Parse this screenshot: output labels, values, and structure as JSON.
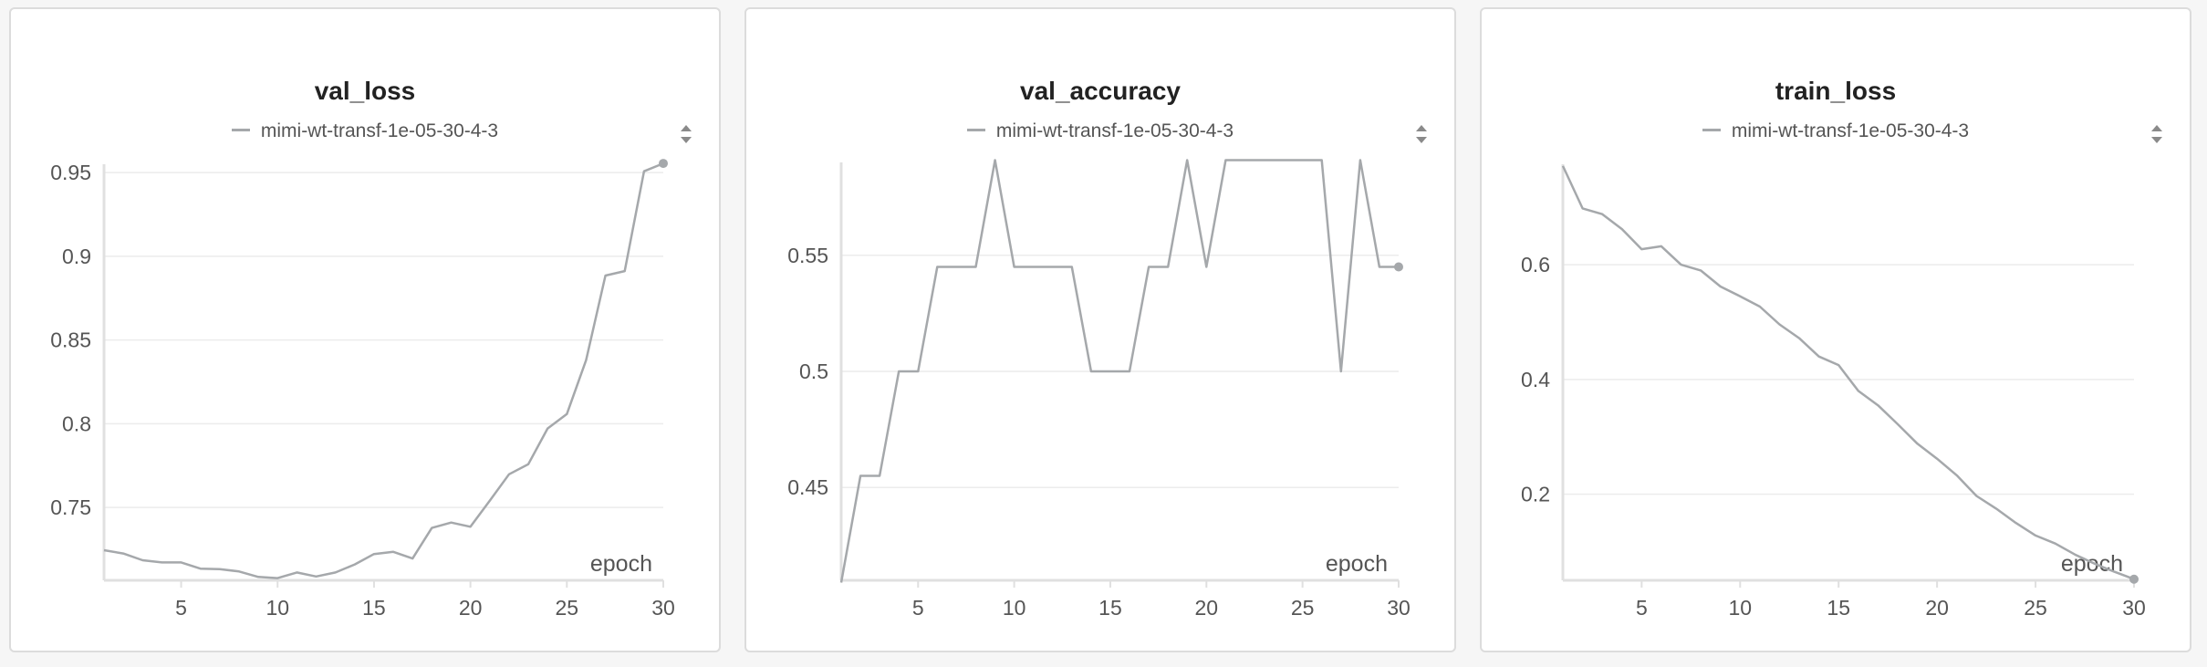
{
  "colors": {
    "line": "#a5a8ab",
    "grid": "#ececec",
    "axis": "#e0e0e0",
    "text": "#555555",
    "title": "#222222"
  },
  "panels": [
    {
      "title": "val_loss",
      "legend": "mimi-wt-transf-1e-05-30-4-3",
      "xlabel": "epoch"
    },
    {
      "title": "val_accuracy",
      "legend": "mimi-wt-transf-1e-05-30-4-3",
      "xlabel": "epoch"
    },
    {
      "title": "train_loss",
      "legend": "mimi-wt-transf-1e-05-30-4-3",
      "xlabel": "epoch"
    }
  ],
  "chart_data": [
    {
      "type": "line",
      "title": "val_loss",
      "xlabel": "epoch",
      "ylabel": "",
      "xlim": [
        1,
        30
      ],
      "ylim": [
        0.7065,
        0.955
      ],
      "xticks": [
        5,
        10,
        15,
        20,
        25,
        30
      ],
      "yticks": [
        0.75,
        0.8,
        0.85,
        0.9,
        0.95
      ],
      "ytick_labels": [
        "0.75",
        "0.8",
        "0.85",
        "0.9",
        "0.95"
      ],
      "grid": true,
      "legend_position": "top",
      "series": [
        {
          "name": "mimi-wt-transf-1e-05-30-4-3",
          "x": [
            1,
            2,
            3,
            4,
            5,
            6,
            7,
            8,
            9,
            10,
            11,
            12,
            13,
            14,
            15,
            16,
            17,
            18,
            19,
            20,
            21,
            22,
            23,
            24,
            25,
            26,
            27,
            28,
            29,
            30
          ],
          "y": [
            0.7245,
            0.7225,
            0.7185,
            0.7172,
            0.7172,
            0.7135,
            0.7132,
            0.7118,
            0.7085,
            0.7078,
            0.7112,
            0.7088,
            0.7112,
            0.716,
            0.7222,
            0.7235,
            0.7195,
            0.7378,
            0.741,
            0.7385,
            0.754,
            0.7698,
            0.7758,
            0.7972,
            0.8058,
            0.838,
            0.8885,
            0.8912,
            0.9508,
            0.9555
          ]
        }
      ]
    },
    {
      "type": "line",
      "title": "val_accuracy",
      "xlabel": "epoch",
      "ylabel": "",
      "xlim": [
        1,
        30
      ],
      "ylim": [
        0.41,
        0.59
      ],
      "xticks": [
        5,
        10,
        15,
        20,
        25,
        30
      ],
      "yticks": [
        0.45,
        0.5,
        0.55
      ],
      "ytick_labels": [
        "0.45",
        "0.5",
        "0.55"
      ],
      "grid": true,
      "legend_position": "top",
      "series": [
        {
          "name": "mimi-wt-transf-1e-05-30-4-3",
          "x": [
            1,
            2,
            3,
            4,
            5,
            6,
            7,
            8,
            9,
            10,
            11,
            12,
            13,
            14,
            15,
            16,
            17,
            18,
            19,
            20,
            21,
            22,
            23,
            24,
            25,
            26,
            27,
            28,
            29,
            30
          ],
          "y": [
            0.409,
            0.455,
            0.455,
            0.5,
            0.5,
            0.545,
            0.545,
            0.545,
            0.591,
            0.545,
            0.545,
            0.545,
            0.545,
            0.5,
            0.5,
            0.5,
            0.545,
            0.545,
            0.591,
            0.545,
            0.591,
            0.591,
            0.591,
            0.591,
            0.591,
            0.591,
            0.5,
            0.591,
            0.545,
            0.545
          ]
        }
      ]
    },
    {
      "type": "line",
      "title": "train_loss",
      "xlabel": "epoch",
      "ylabel": "",
      "xlim": [
        1,
        30
      ],
      "ylim": [
        0.05,
        0.775
      ],
      "xticks": [
        5,
        10,
        15,
        20,
        25,
        30
      ],
      "yticks": [
        0.2,
        0.4,
        0.6
      ],
      "ytick_labels": [
        "0.2",
        "0.4",
        "0.6"
      ],
      "grid": true,
      "legend_position": "top",
      "series": [
        {
          "name": "mimi-wt-transf-1e-05-30-4-3",
          "x": [
            1,
            2,
            3,
            4,
            5,
            6,
            7,
            8,
            9,
            10,
            11,
            12,
            13,
            14,
            15,
            16,
            17,
            18,
            19,
            20,
            21,
            22,
            23,
            24,
            25,
            26,
            27,
            28,
            29,
            30
          ],
          "y": [
            0.772,
            0.698,
            0.688,
            0.662,
            0.627,
            0.632,
            0.6,
            0.59,
            0.562,
            0.545,
            0.527,
            0.496,
            0.472,
            0.44,
            0.425,
            0.38,
            0.355,
            0.322,
            0.288,
            0.262,
            0.233,
            0.197,
            0.175,
            0.15,
            0.128,
            0.114,
            0.095,
            0.079,
            0.065,
            0.052
          ]
        }
      ]
    }
  ]
}
